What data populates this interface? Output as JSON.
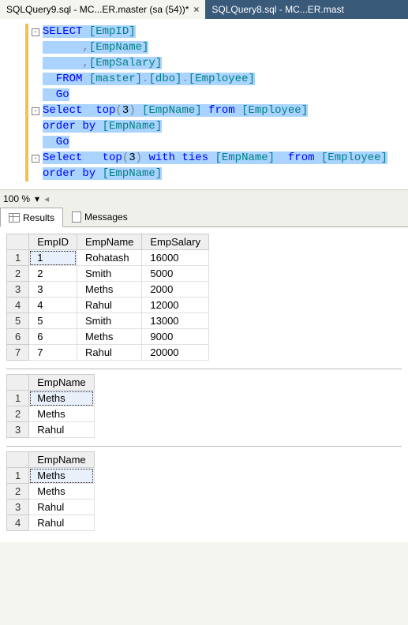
{
  "tabs": [
    {
      "label": "SQLQuery9.sql - MC...ER.master (sa (54))*",
      "active": true
    },
    {
      "label": "SQLQuery8.sql - MC...ER.mast",
      "active": false
    }
  ],
  "editor": {
    "lines": [
      {
        "collapse": true,
        "tokens": [
          [
            "kw hl",
            "SELECT "
          ],
          [
            "obj hl",
            "[EmpID]"
          ]
        ]
      },
      {
        "tokens": [
          [
            "gray hl",
            "      ,"
          ],
          [
            "obj hl",
            "[EmpName]"
          ]
        ]
      },
      {
        "tokens": [
          [
            "gray hl",
            "      ,"
          ],
          [
            "obj hl",
            "[EmpSalary]"
          ]
        ]
      },
      {
        "tokens": [
          [
            "kw hl",
            "  FROM "
          ],
          [
            "obj hl",
            "[master]"
          ],
          [
            "gray hl",
            "."
          ],
          [
            "obj hl",
            "[dbo]"
          ],
          [
            "gray hl",
            "."
          ],
          [
            "obj hl",
            "[Employee]"
          ]
        ]
      },
      {
        "tokens": [
          [
            "kw hl",
            "  Go"
          ]
        ]
      },
      {
        "collapse": true,
        "tokens": [
          [
            "kw hl",
            "Select  top"
          ],
          [
            "gray hl",
            "("
          ],
          [
            "num hl",
            "3"
          ],
          [
            "gray hl",
            ") "
          ],
          [
            "obj hl",
            "[EmpName]"
          ],
          [
            "kw hl",
            " from "
          ],
          [
            "obj hl",
            "[Employee]"
          ]
        ]
      },
      {
        "tokens": [
          [
            "kw hl",
            "order by "
          ],
          [
            "obj hl",
            "[EmpName]"
          ]
        ]
      },
      {
        "tokens": [
          [
            "kw hl",
            "  Go"
          ]
        ]
      },
      {
        "collapse": true,
        "tokens": [
          [
            "kw hl",
            "Select   top"
          ],
          [
            "gray hl",
            "("
          ],
          [
            "num hl",
            "3"
          ],
          [
            "gray hl",
            ") "
          ],
          [
            "kw hl",
            "with ties "
          ],
          [
            "obj hl",
            "[EmpName]"
          ],
          [
            "kw hl",
            "  from "
          ],
          [
            "obj hl",
            "[Employee]"
          ]
        ]
      },
      {
        "tokens": [
          [
            "kw hl",
            "order by "
          ],
          [
            "obj hl",
            "[EmpName]"
          ]
        ]
      }
    ]
  },
  "zoom": "100 %",
  "result_tabs": {
    "results": "Results",
    "messages": "Messages"
  },
  "grids": [
    {
      "columns": [
        "EmpID",
        "EmpName",
        "EmpSalary"
      ],
      "rows": [
        [
          "1",
          "Rohatash",
          "16000"
        ],
        [
          "2",
          "Smith",
          "5000"
        ],
        [
          "3",
          "Meths",
          "2000"
        ],
        [
          "4",
          "Rahul",
          "12000"
        ],
        [
          "5",
          "Smith",
          "13000"
        ],
        [
          "6",
          "Meths",
          "9000"
        ],
        [
          "7",
          "Rahul",
          "20000"
        ]
      ]
    },
    {
      "columns": [
        "EmpName"
      ],
      "rows": [
        [
          "Meths"
        ],
        [
          "Meths"
        ],
        [
          "Rahul"
        ]
      ]
    },
    {
      "columns": [
        "EmpName"
      ],
      "rows": [
        [
          "Meths"
        ],
        [
          "Meths"
        ],
        [
          "Rahul"
        ],
        [
          "Rahul"
        ]
      ]
    }
  ]
}
